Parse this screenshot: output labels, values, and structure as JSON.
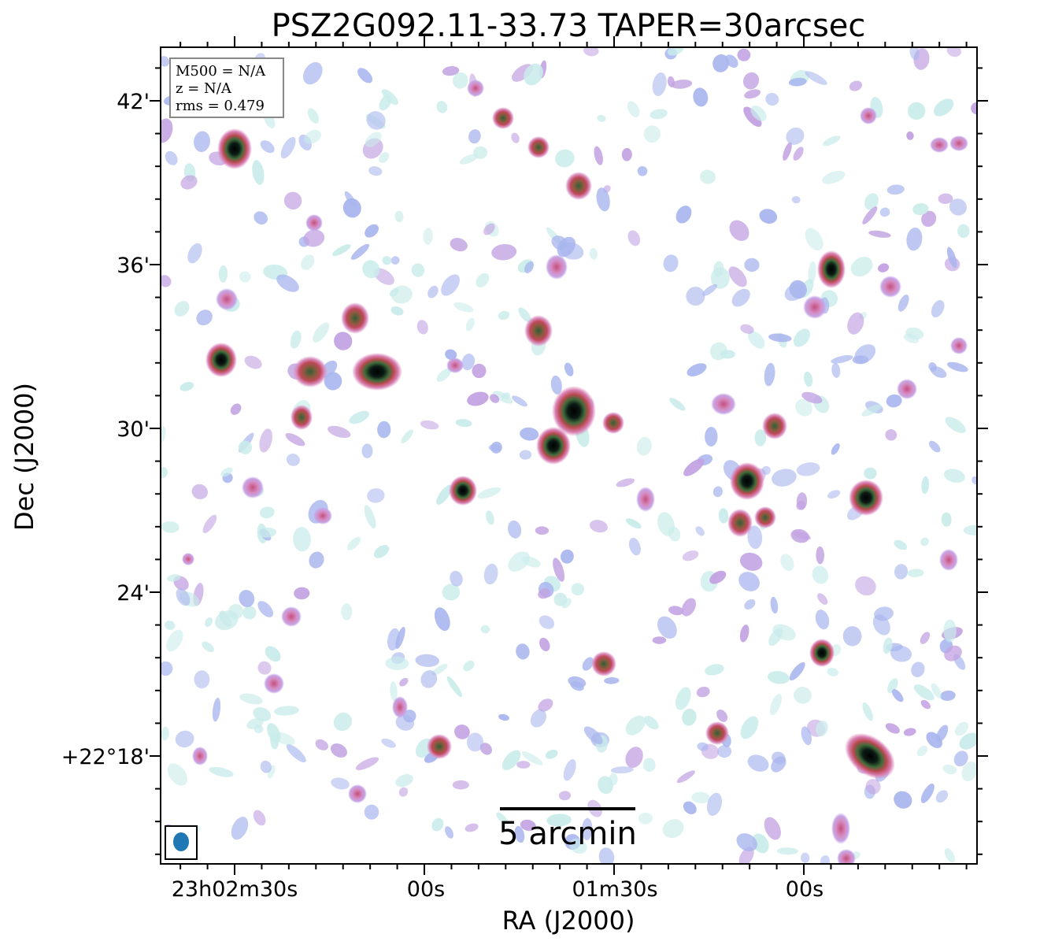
{
  "title": "PSZ2G092.11-33.73 TAPER=30arcsec",
  "axes": {
    "xlabel": "RA (J2000)",
    "ylabel": "Dec (J2000)",
    "xticks": [
      "23h02m30s",
      "00s",
      "01m30s",
      "00s"
    ],
    "yticks": [
      "42'",
      "36'",
      "30'",
      "24'",
      "+22°18'"
    ]
  },
  "info_box": {
    "line1": "M500 = N/A",
    "line2": "z = N/A",
    "line3": "rms = 0.479"
  },
  "scalebar": {
    "label": "5 arcmin"
  },
  "colors": {
    "noise_light": "#c9ecea",
    "noise_blue": "#a9b6ee",
    "noise_violet": "#c2a2e2",
    "source_pink": "#d97fb4",
    "source_red": "#b94a4f",
    "source_green": "#3e6b3a",
    "source_core": "#000000",
    "beam": "#1f77b4"
  }
}
